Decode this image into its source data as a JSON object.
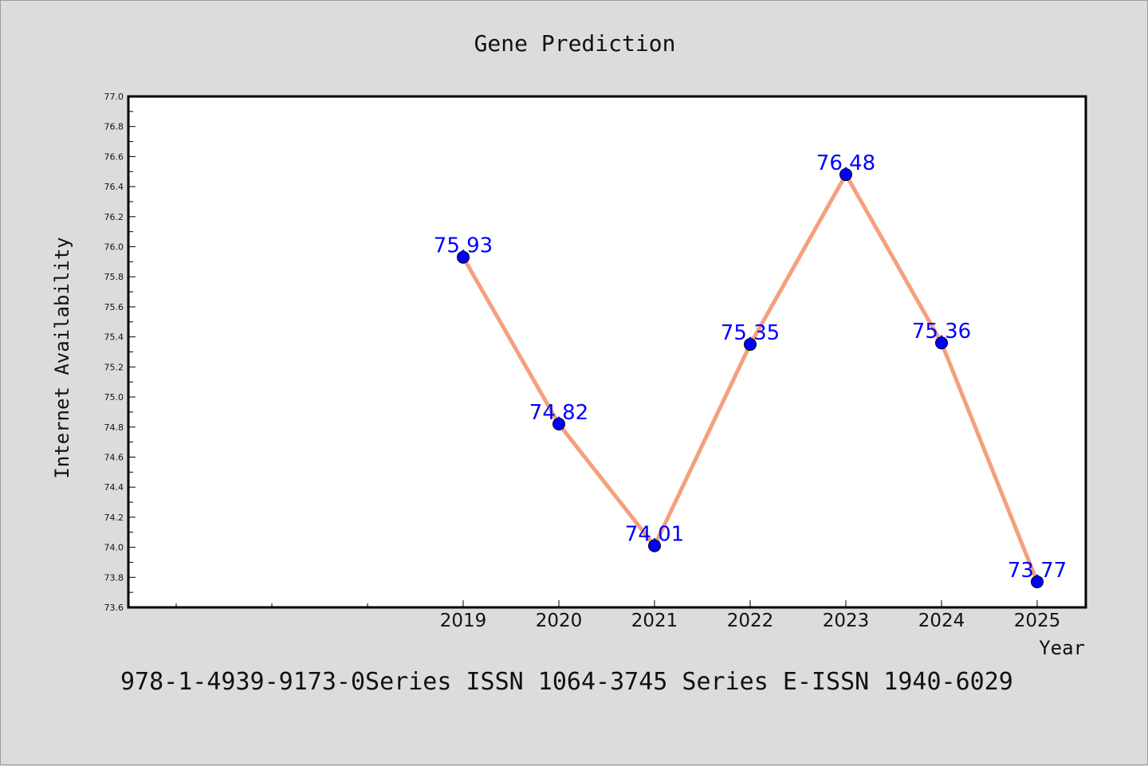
{
  "chart_data": {
    "type": "line",
    "title": "Gene Prediction",
    "xlabel": "Year",
    "ylabel": "Internet Availability",
    "categories": [
      "2019",
      "2020",
      "2021",
      "2022",
      "2023",
      "2024",
      "2025"
    ],
    "series": [
      {
        "values": [
          75.93,
          74.82,
          74.01,
          75.35,
          76.48,
          75.36,
          73.77
        ]
      }
    ],
    "data_labels": [
      "75.93",
      "74.82",
      "74.01",
      "75.35",
      "76.48",
      "75.36",
      "73.77"
    ],
    "ylim": [
      73.6,
      77.0
    ],
    "ytick_step": 0.2,
    "x_extra_ticks_before_first_category": 3,
    "grid": false,
    "legend": "none",
    "colors": {
      "line": "#f4a07e",
      "marker": "#0000ff",
      "label": "#0000ff",
      "background": "#dcdcdc",
      "plot_background": "#ffffff"
    }
  },
  "footer_text": "978-1-4939-9173-0Series ISSN 1064-3745 Series E-ISSN 1940-6029"
}
